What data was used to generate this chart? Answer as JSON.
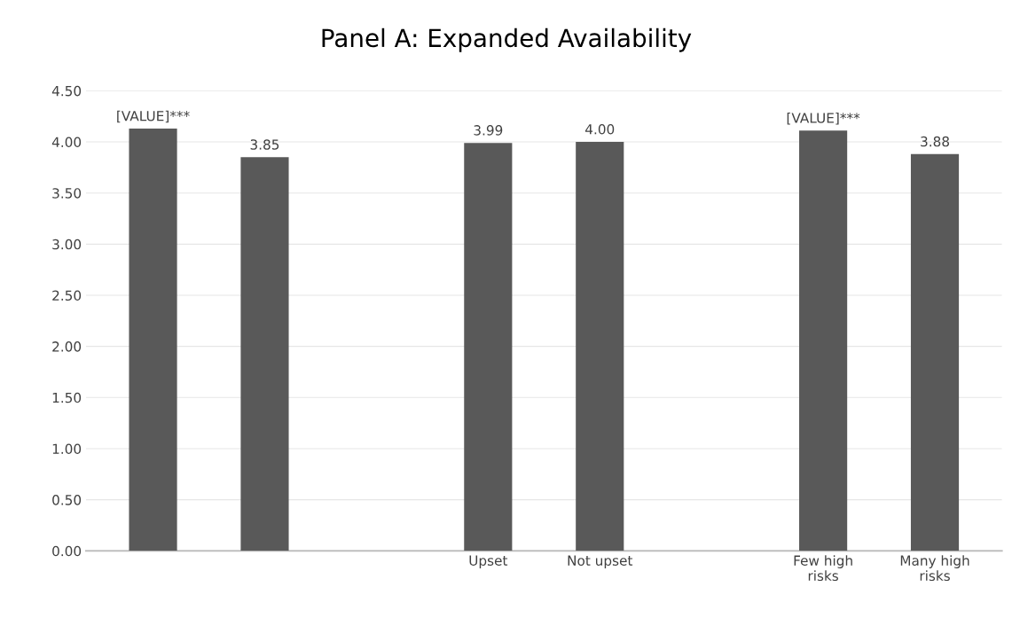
{
  "chart_data": {
    "type": "bar",
    "title": "Panel A: Expanded Availability",
    "categories": [
      null,
      null,
      null,
      "Upset",
      "Not upset",
      null,
      "Few high\nrisks",
      "Many high\nrisks"
    ],
    "values": [
      4.13,
      3.85,
      null,
      3.99,
      4.0,
      null,
      4.11,
      3.88
    ],
    "value_labels": [
      "[VALUE]***",
      "3.85",
      null,
      "3.99",
      "4.00",
      null,
      "[VALUE]***",
      "3.88"
    ],
    "color": "#595959",
    "ylim": [
      0,
      4.5
    ],
    "yticks": [
      {
        "value": 0,
        "label": "0.00"
      },
      {
        "value": 0.5,
        "label": "0.50"
      },
      {
        "value": 1,
        "label": "1.00"
      },
      {
        "value": 1.5,
        "label": "1.50"
      },
      {
        "value": 2,
        "label": "2.00"
      },
      {
        "value": 2.5,
        "label": "2.50"
      },
      {
        "value": 3,
        "label": "3.00"
      },
      {
        "value": 3.5,
        "label": "3.50"
      },
      {
        "value": 4,
        "label": "4.00"
      },
      {
        "value": 4.5,
        "label": "4.50"
      }
    ],
    "grid": "y"
  }
}
